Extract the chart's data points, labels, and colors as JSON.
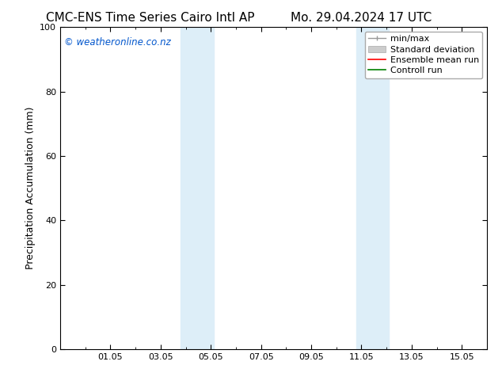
{
  "title_left": "CMC-ENS Time Series Cairo Intl AP",
  "title_right": "Mo. 29.04.2024 17 UTC",
  "ylabel": "Precipitation Accumulation (mm)",
  "ylim": [
    0,
    100
  ],
  "yticks": [
    0,
    20,
    40,
    60,
    80,
    100
  ],
  "background_color": "#ffffff",
  "plot_bg_color": "#ffffff",
  "watermark": "© weatheronline.co.nz",
  "watermark_color": "#0055cc",
  "shaded_bands": [
    {
      "x_start": 5.5,
      "x_end": 7.0,
      "color": "#ddeef8"
    },
    {
      "x_start": 13.5,
      "x_end": 15.0,
      "color": "#ddeef8"
    }
  ],
  "xtick_labels": [
    "01.05",
    "03.05",
    "05.05",
    "07.05",
    "09.05",
    "11.05",
    "13.05",
    "15.05"
  ],
  "xtick_positions": [
    2.292,
    4.583,
    6.875,
    9.167,
    11.458,
    13.75,
    16.042,
    18.333
  ],
  "xlim": [
    0,
    18.958
  ],
  "legend_entries": [
    {
      "label": "min/max",
      "color": "#aaaaaa",
      "lw": 1.0
    },
    {
      "label": "Standard deviation",
      "color": "#cccccc",
      "lw": 5
    },
    {
      "label": "Ensemble mean run",
      "color": "#ff0000",
      "lw": 1.2
    },
    {
      "label": "Controll run",
      "color": "#008000",
      "lw": 1.2
    }
  ],
  "font_family": "DejaVu Sans",
  "title_fontsize": 11,
  "axis_fontsize": 9,
  "tick_fontsize": 8,
  "watermark_fontsize": 8.5,
  "legend_fontsize": 8
}
